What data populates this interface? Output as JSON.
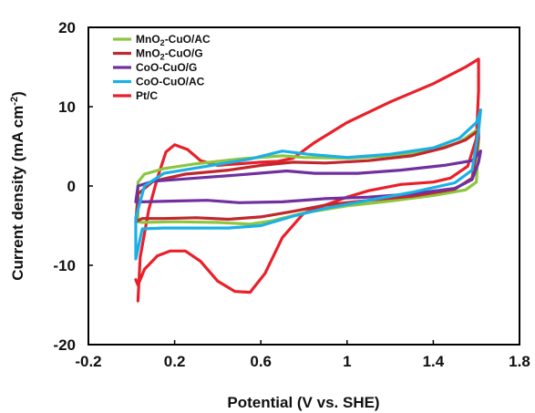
{
  "chart_data": {
    "type": "line",
    "title": "",
    "xlabel": "Potential (V vs. SHE)",
    "ylabel_main": "Current density (mA cm",
    "ylabel_sup": "-2",
    "ylabel_close": ")",
    "xlim": [
      -0.2,
      1.8
    ],
    "ylim": [
      -20,
      20
    ],
    "xticks": [
      -0.2,
      0.2,
      0.6,
      1,
      1.4,
      1.8
    ],
    "xtick_labels": [
      "-0.2",
      "0.2",
      "0.6",
      "1",
      "1.4",
      "1.8"
    ],
    "yticks": [
      -20,
      -10,
      0,
      10,
      20
    ],
    "ytick_labels": [
      "-20",
      "-10",
      "0",
      "10",
      "20"
    ],
    "grid": false,
    "legend_position": "top-left",
    "series": [
      {
        "name": "MnO2-CuO/AC",
        "legend_main": "MnO",
        "legend_sub": "2",
        "legend_rest": "-CuO/AC",
        "color": "#8cc63f",
        "points": [
          [
            0.03,
            -4.5
          ],
          [
            0.03,
            0.5
          ],
          [
            0.06,
            1.5
          ],
          [
            0.15,
            2.2
          ],
          [
            0.3,
            2.8
          ],
          [
            0.5,
            3.4
          ],
          [
            0.7,
            3.8
          ],
          [
            0.8,
            3.6
          ],
          [
            1.0,
            3.5
          ],
          [
            1.2,
            3.8
          ],
          [
            1.4,
            4.5
          ],
          [
            1.52,
            5.5
          ],
          [
            1.6,
            7.0
          ],
          [
            1.61,
            6.0
          ],
          [
            1.6,
            0.5
          ],
          [
            1.55,
            -0.5
          ],
          [
            1.4,
            -1.2
          ],
          [
            1.2,
            -1.9
          ],
          [
            1.0,
            -2.5
          ],
          [
            0.8,
            -3.4
          ],
          [
            0.65,
            -4.4
          ],
          [
            0.55,
            -4.8
          ],
          [
            0.4,
            -4.6
          ],
          [
            0.2,
            -4.5
          ],
          [
            0.05,
            -4.6
          ],
          [
            0.03,
            -4.5
          ]
        ]
      },
      {
        "name": "MnO2-CuO/G",
        "legend_main": "MnO",
        "legend_sub": "2",
        "legend_rest": "-CuO/G",
        "color": "#c0282d",
        "points": [
          [
            0.02,
            -4.5
          ],
          [
            0.03,
            -1.0
          ],
          [
            0.1,
            0.6
          ],
          [
            0.25,
            1.5
          ],
          [
            0.45,
            2.0
          ],
          [
            0.6,
            2.6
          ],
          [
            0.75,
            3.0
          ],
          [
            0.9,
            2.9
          ],
          [
            1.1,
            3.2
          ],
          [
            1.3,
            3.8
          ],
          [
            1.45,
            4.8
          ],
          [
            1.55,
            5.8
          ],
          [
            1.61,
            7.0
          ],
          [
            1.61,
            6.0
          ],
          [
            1.58,
            1.0
          ],
          [
            1.5,
            -0.4
          ],
          [
            1.3,
            -1.3
          ],
          [
            1.1,
            -1.8
          ],
          [
            0.9,
            -2.4
          ],
          [
            0.75,
            -3.2
          ],
          [
            0.6,
            -3.9
          ],
          [
            0.45,
            -4.2
          ],
          [
            0.3,
            -4.0
          ],
          [
            0.15,
            -4.1
          ],
          [
            0.05,
            -4.1
          ],
          [
            0.02,
            -4.5
          ]
        ]
      },
      {
        "name": "CoO-CuO/G",
        "legend_main": "CoO-CuO/G",
        "legend_sub": "",
        "legend_rest": "",
        "color": "#7030a0",
        "points": [
          [
            0.02,
            -2.0
          ],
          [
            0.03,
            0.0
          ],
          [
            0.1,
            0.6
          ],
          [
            0.3,
            1.0
          ],
          [
            0.5,
            1.4
          ],
          [
            0.72,
            1.9
          ],
          [
            0.85,
            1.6
          ],
          [
            1.05,
            1.6
          ],
          [
            1.25,
            2.0
          ],
          [
            1.45,
            2.6
          ],
          [
            1.58,
            3.2
          ],
          [
            1.62,
            4.4
          ],
          [
            1.61,
            3.0
          ],
          [
            1.58,
            0.8
          ],
          [
            1.5,
            -0.3
          ],
          [
            1.3,
            -1.0
          ],
          [
            1.1,
            -1.4
          ],
          [
            0.9,
            -1.6
          ],
          [
            0.7,
            -2.0
          ],
          [
            0.5,
            -2.1
          ],
          [
            0.35,
            -1.8
          ],
          [
            0.2,
            -1.9
          ],
          [
            0.05,
            -2.0
          ],
          [
            0.02,
            -2.0
          ]
        ]
      },
      {
        "name": "CoO-CuO/AC",
        "legend_main": "CoO-CuO/AC",
        "legend_sub": "",
        "legend_rest": "",
        "color": "#1ab0e6",
        "points": [
          [
            0.02,
            -9.2
          ],
          [
            0.02,
            -4.0
          ],
          [
            0.06,
            0.0
          ],
          [
            0.15,
            1.6
          ],
          [
            0.35,
            2.5
          ],
          [
            0.55,
            3.4
          ],
          [
            0.7,
            4.4
          ],
          [
            0.82,
            4.0
          ],
          [
            1.0,
            3.6
          ],
          [
            1.2,
            4.0
          ],
          [
            1.4,
            4.8
          ],
          [
            1.52,
            6.0
          ],
          [
            1.6,
            8.0
          ],
          [
            1.62,
            9.6
          ],
          [
            1.61,
            7.0
          ],
          [
            1.58,
            2.0
          ],
          [
            1.5,
            0.4
          ],
          [
            1.3,
            -0.8
          ],
          [
            1.1,
            -1.8
          ],
          [
            0.9,
            -2.8
          ],
          [
            0.75,
            -3.8
          ],
          [
            0.6,
            -5.0
          ],
          [
            0.45,
            -5.3
          ],
          [
            0.3,
            -5.3
          ],
          [
            0.15,
            -5.3
          ],
          [
            0.05,
            -5.4
          ],
          [
            0.02,
            -9.2
          ]
        ]
      },
      {
        "name": "Pt/C",
        "legend_main": "Pt/C",
        "legend_sub": "",
        "legend_rest": "",
        "color": "#e8202a",
        "points": [
          [
            0.03,
            -14.5
          ],
          [
            0.04,
            -9.0
          ],
          [
            0.08,
            -3.0
          ],
          [
            0.12,
            1.0
          ],
          [
            0.16,
            4.3
          ],
          [
            0.2,
            5.2
          ],
          [
            0.26,
            4.6
          ],
          [
            0.32,
            3.2
          ],
          [
            0.4,
            2.6
          ],
          [
            0.5,
            2.8
          ],
          [
            0.6,
            3.0
          ],
          [
            0.68,
            3.1
          ],
          [
            0.75,
            3.5
          ],
          [
            0.85,
            5.5
          ],
          [
            1.0,
            8.0
          ],
          [
            1.2,
            10.6
          ],
          [
            1.4,
            12.9
          ],
          [
            1.55,
            15.0
          ],
          [
            1.61,
            16.0
          ],
          [
            1.61,
            12.0
          ],
          [
            1.6,
            6.0
          ],
          [
            1.56,
            2.5
          ],
          [
            1.48,
            1.0
          ],
          [
            1.4,
            0.5
          ],
          [
            1.25,
            0.2
          ],
          [
            1.1,
            -0.6
          ],
          [
            1.0,
            -1.4
          ],
          [
            0.9,
            -2.4
          ],
          [
            0.8,
            -3.4
          ],
          [
            0.7,
            -6.5
          ],
          [
            0.62,
            -11.0
          ],
          [
            0.55,
            -13.4
          ],
          [
            0.48,
            -13.3
          ],
          [
            0.4,
            -12.0
          ],
          [
            0.32,
            -9.5
          ],
          [
            0.25,
            -8.2
          ],
          [
            0.18,
            -8.2
          ],
          [
            0.12,
            -8.8
          ],
          [
            0.06,
            -10.5
          ],
          [
            0.03,
            -12.5
          ],
          [
            0.02,
            -11.8
          ]
        ]
      }
    ]
  }
}
